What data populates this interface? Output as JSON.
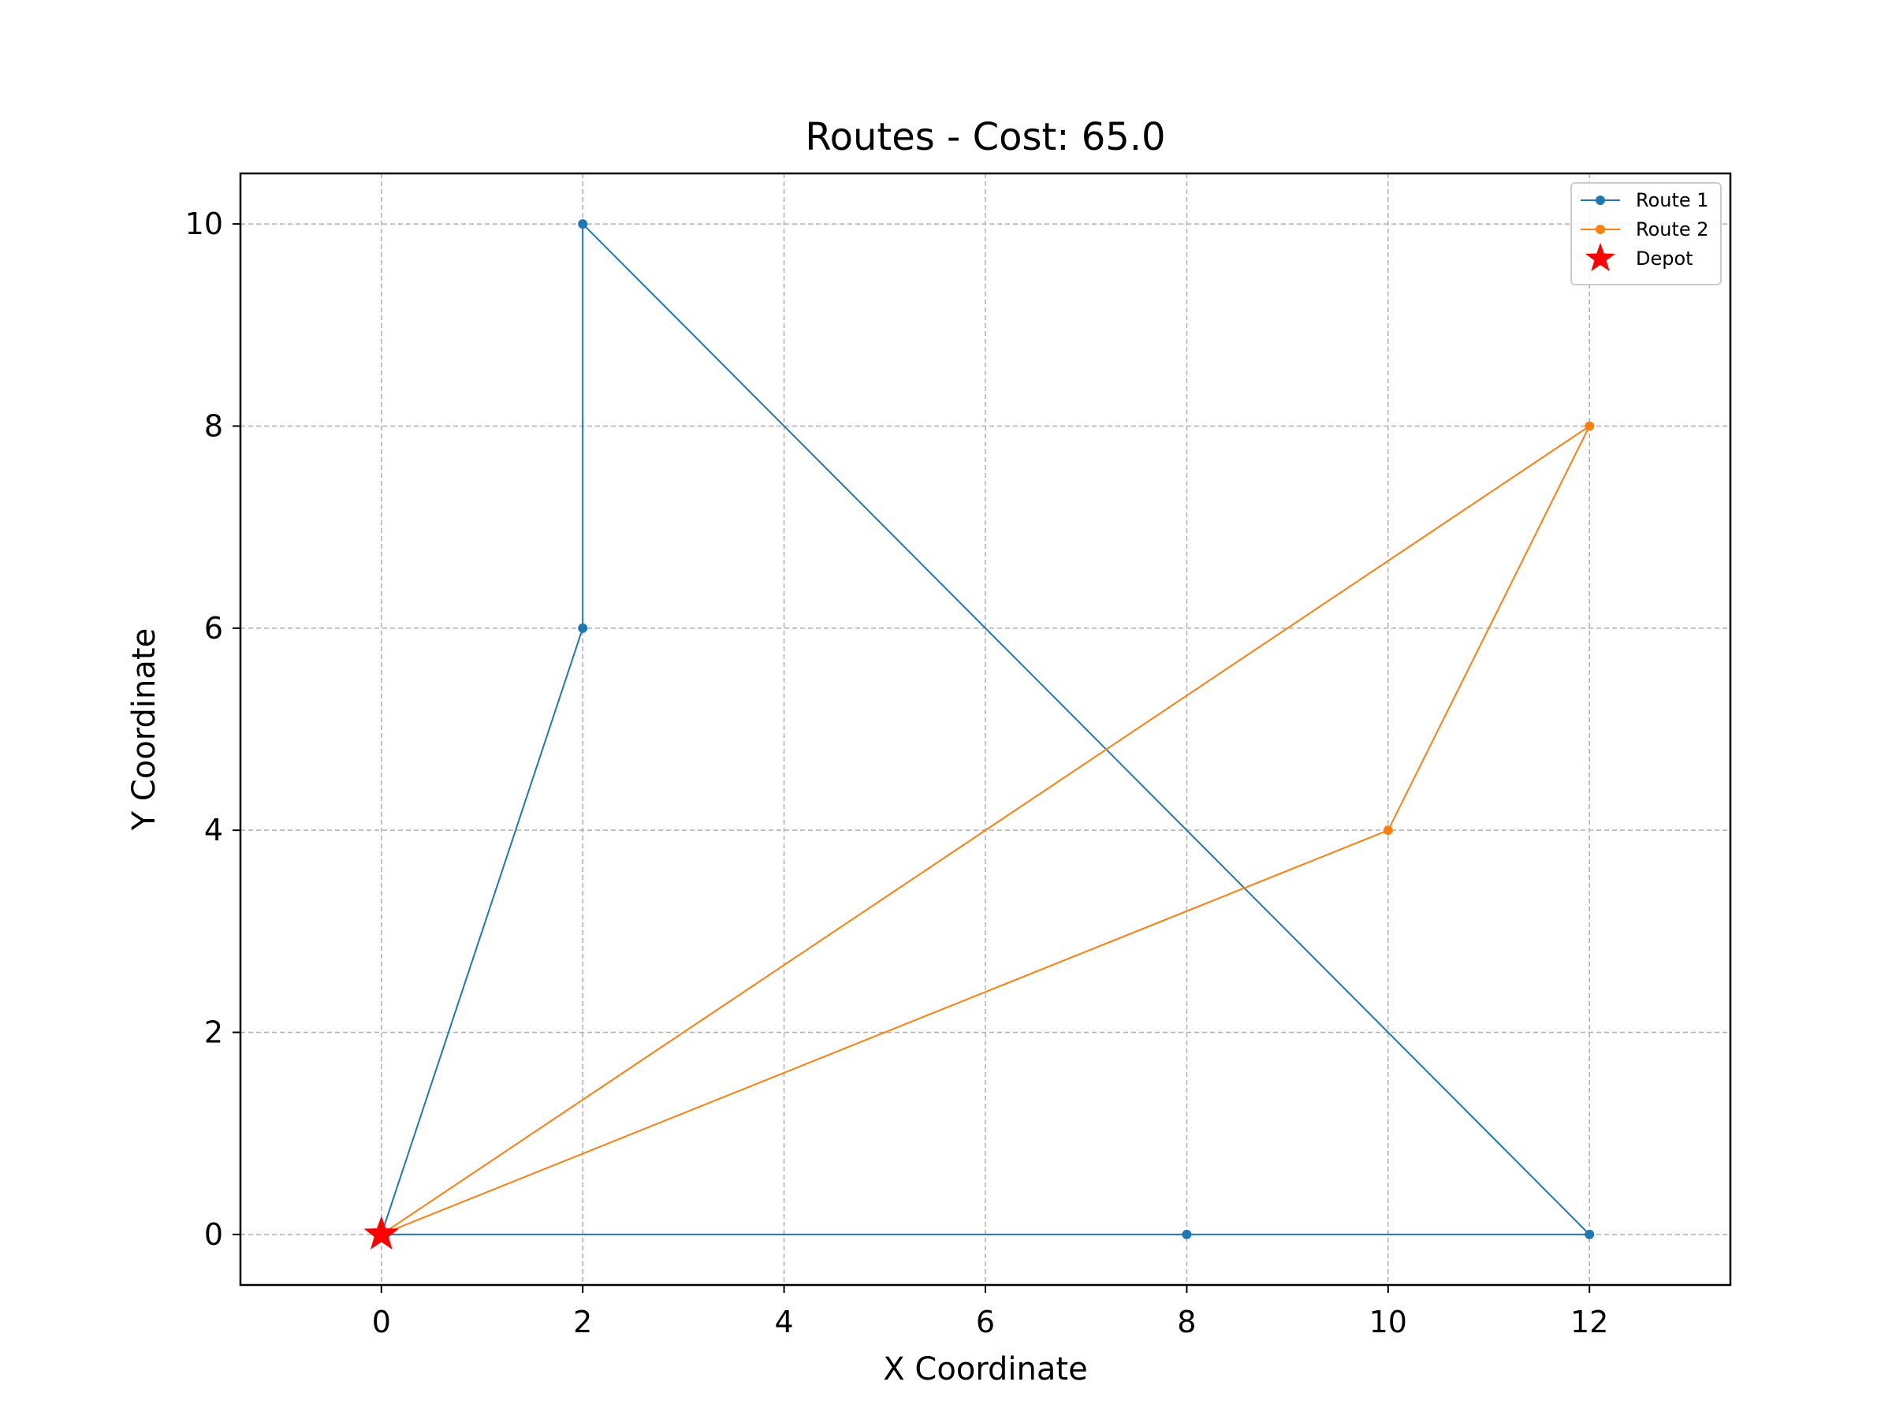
{
  "chart_data": {
    "type": "line",
    "title": "Routes - Cost: 65.0",
    "xlabel": "X Coordinate",
    "ylabel": "Y Coordinate",
    "xlim": [
      -1.4,
      13.4
    ],
    "ylim": [
      -0.5,
      10.5
    ],
    "xticks": [
      0,
      2,
      4,
      6,
      8,
      10,
      12
    ],
    "yticks": [
      0,
      2,
      4,
      6,
      8,
      10
    ],
    "grid": true,
    "legend_position": "top-right",
    "series": [
      {
        "name": "Route 1",
        "color": "#1f77b4",
        "points": [
          [
            0,
            0
          ],
          [
            2,
            6
          ],
          [
            2,
            10
          ],
          [
            12,
            0
          ],
          [
            8,
            0
          ],
          [
            0,
            0
          ]
        ]
      },
      {
        "name": "Route 2",
        "color": "#ff7f0e",
        "points": [
          [
            0,
            0
          ],
          [
            10,
            4
          ],
          [
            12,
            8
          ],
          [
            0,
            0
          ]
        ]
      }
    ],
    "depot": {
      "name": "Depot",
      "color": "#ff0000",
      "marker": "star",
      "point": [
        0,
        0
      ]
    }
  }
}
